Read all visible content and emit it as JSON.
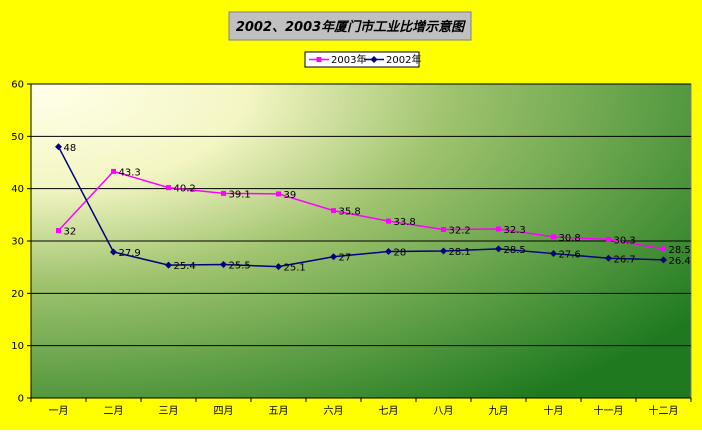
{
  "chart_data": {
    "type": "line",
    "title": "2002、2003年厦门市工业比增示意图",
    "categories": [
      "一月",
      "二月",
      "三月",
      "四月",
      "五月",
      "六月",
      "七月",
      "八月",
      "九月",
      "十月",
      "十一月",
      "十二月"
    ],
    "series": [
      {
        "name": "2003年",
        "color": "#ff00ff",
        "marker": "square",
        "values": [
          32,
          43.3,
          40.2,
          39.1,
          39,
          35.8,
          33.8,
          32.2,
          32.3,
          30.8,
          30.3,
          28.5
        ],
        "labels": [
          "32",
          "43.3",
          "40.2",
          "39.1",
          "39",
          "35.8",
          "33.8",
          "32.2",
          "32.3",
          "30.8",
          "30.3",
          "28.5"
        ]
      },
      {
        "name": "2002年",
        "color": "#000080",
        "marker": "diamond",
        "values": [
          48,
          27.9,
          25.4,
          25.5,
          25.1,
          27,
          28,
          28.1,
          28.5,
          27.6,
          26.7,
          26.4
        ],
        "labels": [
          "48",
          "27.9",
          "25.4",
          "25.5",
          "25.1",
          "27",
          "28",
          "28.1",
          "28.5",
          "27.6",
          "26.7",
          "26.4"
        ]
      }
    ],
    "ylim": [
      0,
      60
    ],
    "yticks": [
      "0",
      "10",
      "20",
      "30",
      "40",
      "50",
      "60"
    ],
    "grid": true,
    "legend": "top-center",
    "colors": {
      "frame_background": "#ffff00",
      "title_box": "#c0c0c0",
      "plot_light": "#ffffe8",
      "plot_dark": "#1f7a1f",
      "gridline": "#000000"
    }
  }
}
